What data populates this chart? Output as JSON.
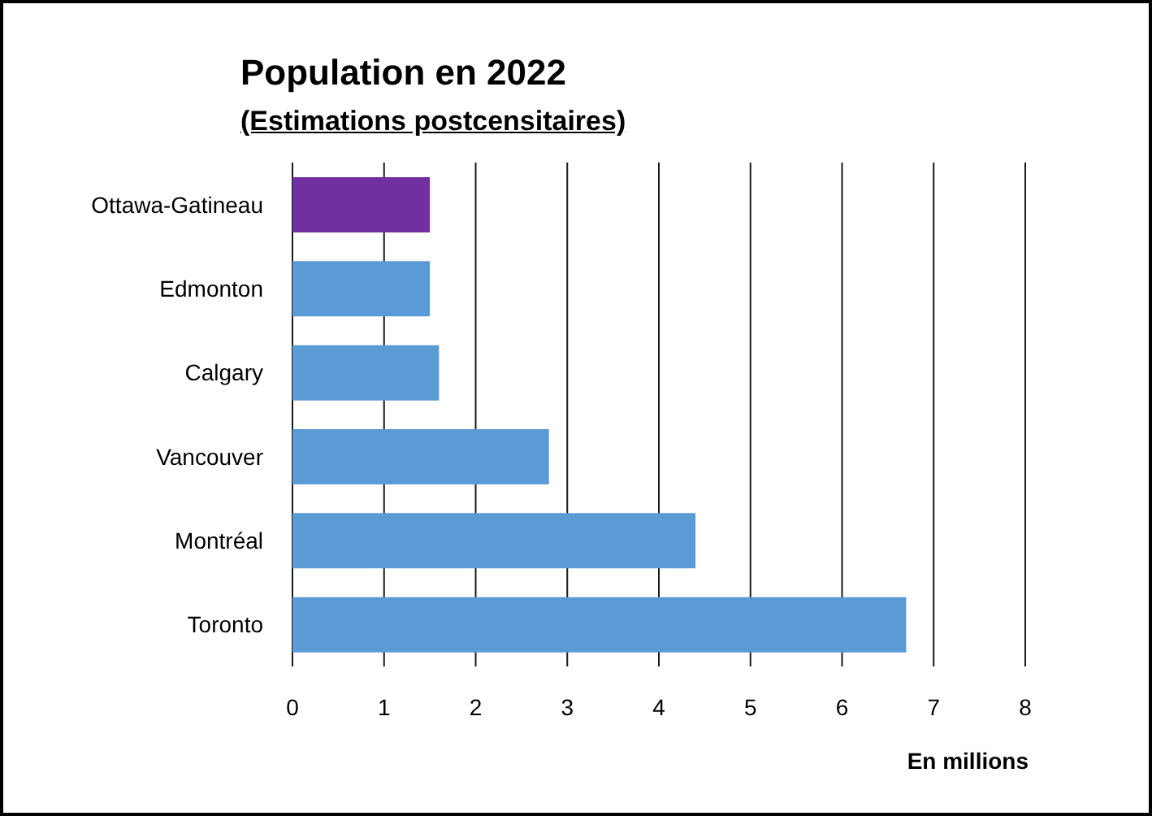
{
  "chart_data": {
    "type": "bar",
    "orientation": "horizontal",
    "title": "Population en 2022",
    "subtitle": "(Estimations postcensitaires)",
    "xlabel": "En millions",
    "categories": [
      "Ottawa-Gatineau",
      "Edmonton",
      "Calgary",
      "Vancouver",
      "Montréal",
      "Toronto"
    ],
    "values": [
      1.5,
      1.5,
      1.6,
      2.8,
      4.4,
      6.7
    ],
    "colors": [
      "#7030a0",
      "#5b9bd5",
      "#5b9bd5",
      "#5b9bd5",
      "#5b9bd5",
      "#5b9bd5"
    ],
    "xlim": [
      0,
      8
    ],
    "xticks": [
      0,
      1,
      2,
      3,
      4,
      5,
      6,
      7,
      8
    ],
    "grid": "x",
    "legend": false
  }
}
